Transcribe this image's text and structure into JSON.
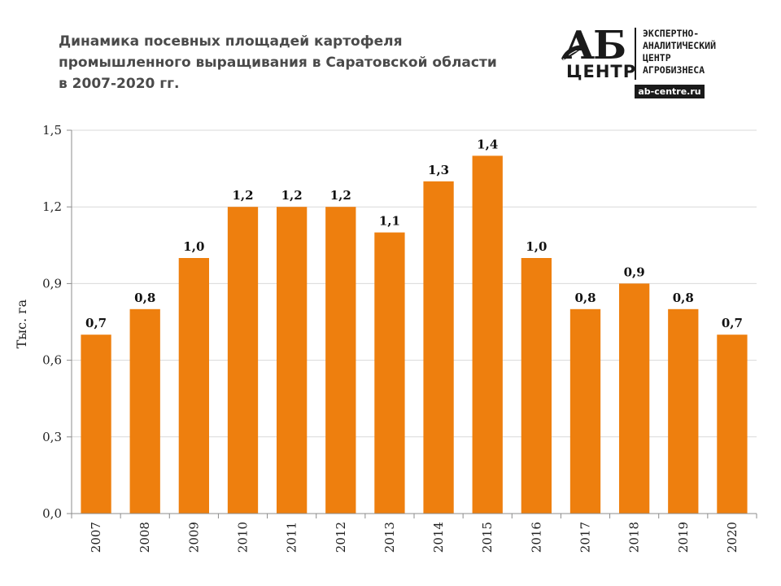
{
  "header": {
    "title_lines": [
      "Динамика посевных площадей картофеля",
      "промышленного  выращивания  в Саратовской  области",
      "в 2007-2020 гг."
    ]
  },
  "logo": {
    "mark_top": "АБ",
    "mark_bottom": "ЦЕНТР",
    "text_lines": [
      "ЭКСПЕРТНО-",
      "АНАЛИТИЧЕСКИЙ",
      "ЦЕНТР",
      "АГРОБИЗНЕСА"
    ],
    "url": "ab-centre.ru"
  },
  "chart_data": {
    "type": "bar",
    "title": "Динамика посевных площадей картофеля промышленного выращивания в Саратовской области в 2007-2020 гг.",
    "xlabel": "",
    "ylabel": "Тыс. га",
    "categories": [
      "2007",
      "2008",
      "2009",
      "2010",
      "2011",
      "2012",
      "2013",
      "2014",
      "2015",
      "2016",
      "2017",
      "2018",
      "2019",
      "2020"
    ],
    "values": [
      0.7,
      0.8,
      1.0,
      1.2,
      1.2,
      1.2,
      1.1,
      1.3,
      1.4,
      1.0,
      0.8,
      0.9,
      0.8,
      0.7
    ],
    "value_labels": [
      "0,7",
      "0,8",
      "1,0",
      "1,2",
      "1,2",
      "1,2",
      "1,1",
      "1,3",
      "1,4",
      "1,0",
      "0,8",
      "0,9",
      "0,8",
      "0,7"
    ],
    "ylim": [
      0,
      1.5
    ],
    "yticks": [
      0,
      0.3,
      0.6,
      0.9,
      1.2,
      1.5
    ],
    "ytick_labels": [
      "0,0",
      "0,3",
      "0,6",
      "0,9",
      "1,2",
      "1,5"
    ],
    "grid": true,
    "bar_color": "#ee7f0e",
    "grid_color": "#d9d9d9",
    "axis_color": "#8c8c8c"
  }
}
